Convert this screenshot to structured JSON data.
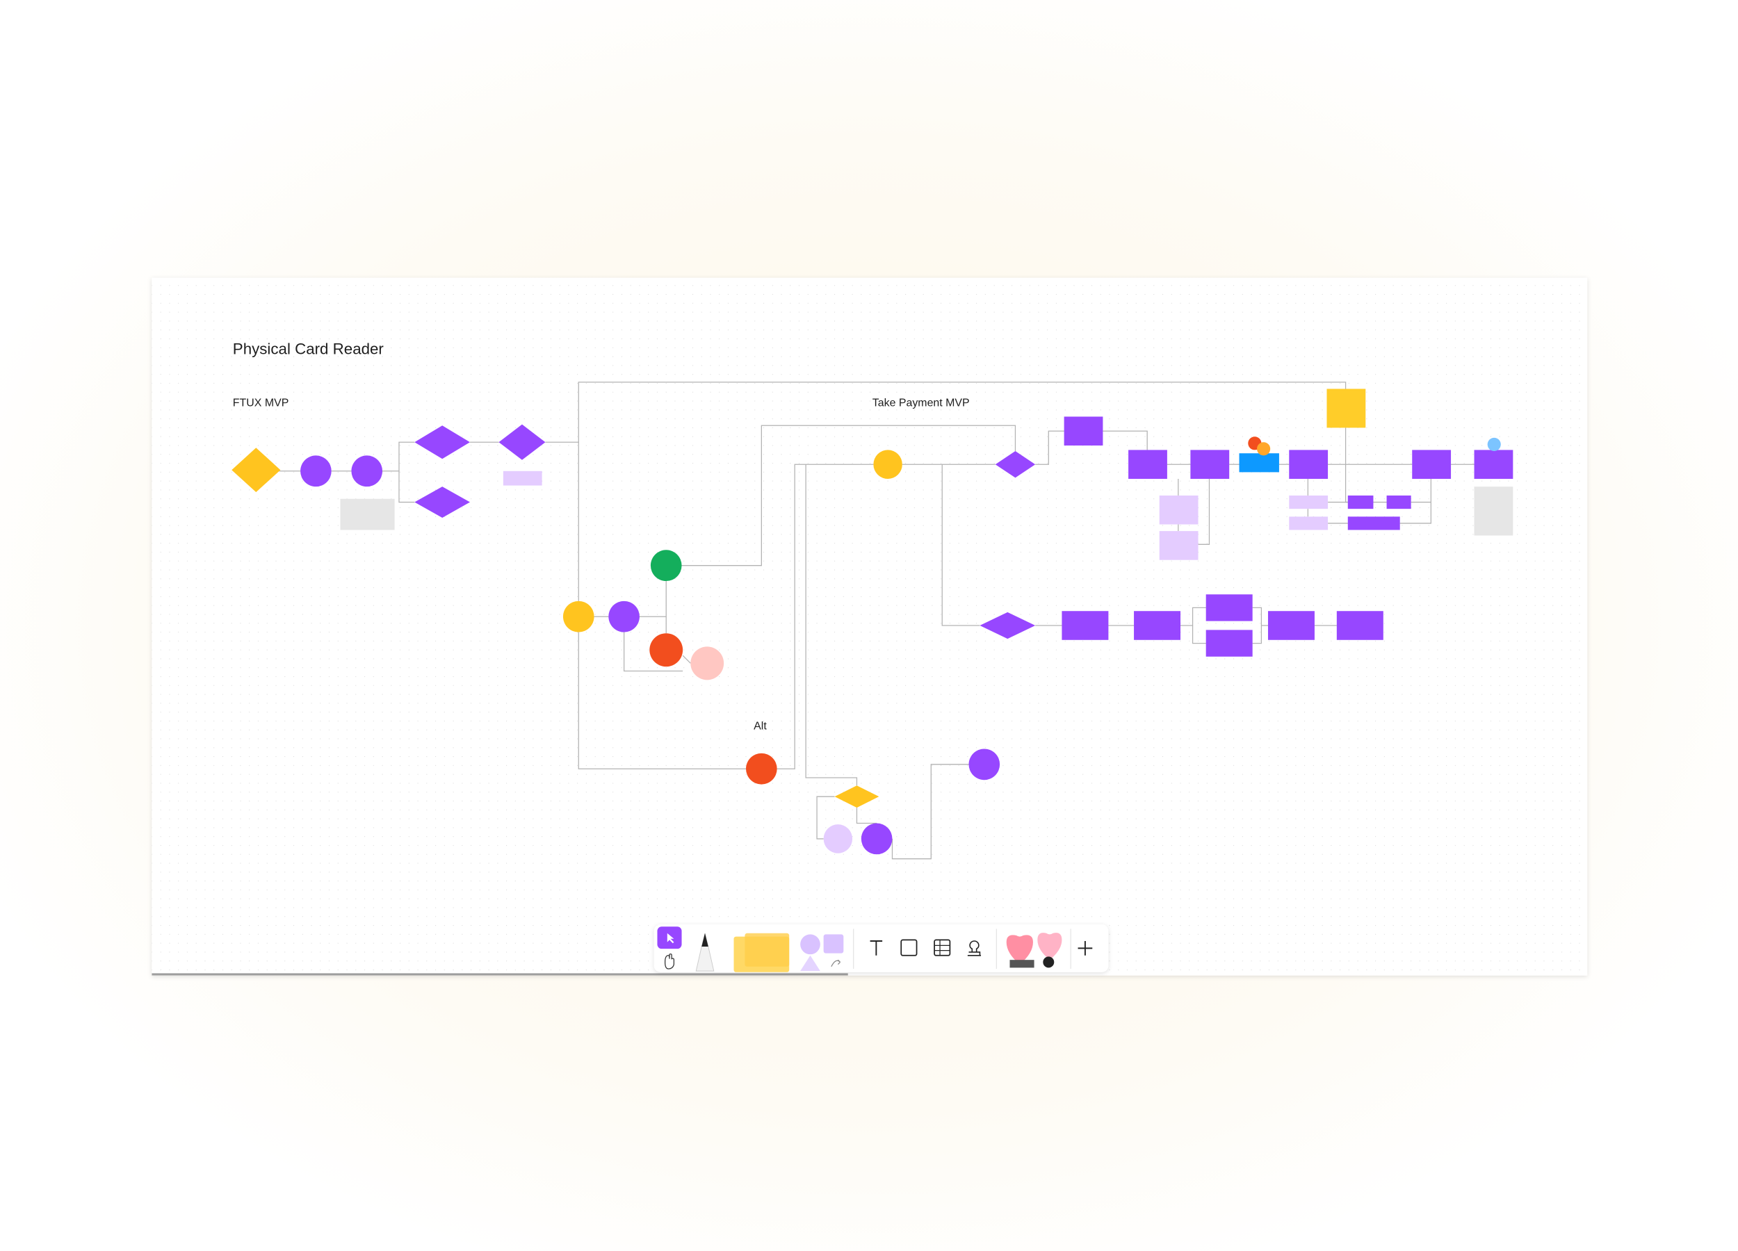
{
  "board": {
    "title": "Physical Card Reader",
    "sections": [
      "FTUX MVP",
      "Take Payment MVP",
      "Alt"
    ]
  }
}
